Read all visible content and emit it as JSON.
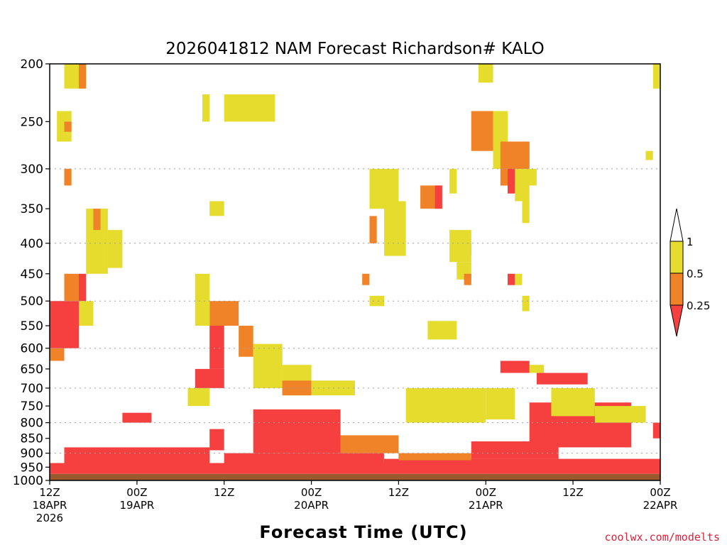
{
  "chart_data": {
    "type": "heatmap",
    "title": "2026041812 NAM Forecast Richardson# KALO",
    "xlabel": "Forecast Time (UTC)",
    "ylabel": "",
    "credit": "coolwx.com/modelts",
    "y_axis": {
      "range": [
        1000,
        200
      ],
      "ticks": [
        "200",
        "250",
        "300",
        "350",
        "400",
        "450",
        "500",
        "550",
        "600",
        "650",
        "700",
        "750",
        "800",
        "850",
        "900",
        "950",
        "1000"
      ],
      "gridlines": [
        300,
        400,
        500,
        600,
        700,
        800,
        900,
        1000
      ]
    },
    "x_axis": {
      "range_hours": [
        0,
        84
      ],
      "ticks": [
        {
          "hour": 0,
          "lines": [
            "12Z",
            "18APR",
            "2026"
          ]
        },
        {
          "hour": 12,
          "lines": [
            "00Z",
            "19APR"
          ]
        },
        {
          "hour": 24,
          "lines": [
            "12Z"
          ]
        },
        {
          "hour": 36,
          "lines": [
            "00Z",
            "20APR"
          ]
        },
        {
          "hour": 48,
          "lines": [
            "12Z"
          ]
        },
        {
          "hour": 60,
          "lines": [
            "00Z",
            "21APR"
          ]
        },
        {
          "hour": 72,
          "lines": [
            "12Z"
          ]
        },
        {
          "hour": 84,
          "lines": [
            "00Z",
            "22APR"
          ]
        }
      ]
    },
    "legend": {
      "placement": "right",
      "labels": [
        "1",
        "0.5",
        "0.25"
      ],
      "bins": [
        {
          "range": "> 1",
          "color": "#ffffff"
        },
        {
          "range": "0.5 - 1",
          "color": "#e5dc2e"
        },
        {
          "range": "0.25 - 0.5",
          "color": "#f08228"
        },
        {
          "range": "< 0.25",
          "color": "#f64040"
        }
      ]
    },
    "colors": {
      "low": "#f64040",
      "mid": "#f08228",
      "high": "#e5dc2e",
      "ground": "#9a5a2e"
    },
    "ground_level_hpa": 975,
    "regions": [
      {
        "level": "low",
        "h": [
          0,
          84
        ],
        "p": [
          935,
          975
        ]
      },
      {
        "level": "low",
        "h": [
          2,
          22
        ],
        "p": [
          880,
          935
        ]
      },
      {
        "level": "low",
        "h": [
          10,
          14
        ],
        "p": [
          770,
          800
        ]
      },
      {
        "level": "low",
        "h": [
          22,
          24
        ],
        "p": [
          820,
          890
        ]
      },
      {
        "level": "low",
        "h": [
          24,
          46
        ],
        "p": [
          900,
          940
        ]
      },
      {
        "level": "low",
        "h": [
          28,
          40
        ],
        "p": [
          760,
          900
        ]
      },
      {
        "level": "mid",
        "h": [
          40,
          48
        ],
        "p": [
          840,
          900
        ]
      },
      {
        "level": "low",
        "h": [
          46,
          84
        ],
        "p": [
          920,
          950
        ]
      },
      {
        "level": "mid",
        "h": [
          48,
          58
        ],
        "p": [
          900,
          925
        ]
      },
      {
        "level": "low",
        "h": [
          58,
          70
        ],
        "p": [
          860,
          920
        ]
      },
      {
        "level": "low",
        "h": [
          66,
          80
        ],
        "p": [
          740,
          880
        ]
      },
      {
        "level": "low",
        "h": [
          62,
          66
        ],
        "p": [
          630,
          660
        ]
      },
      {
        "level": "low",
        "h": [
          67,
          74
        ],
        "p": [
          660,
          690
        ]
      },
      {
        "level": "low",
        "h": [
          83,
          84
        ],
        "p": [
          800,
          850
        ]
      },
      {
        "level": "low",
        "h": [
          0,
          4
        ],
        "p": [
          500,
          600
        ]
      },
      {
        "level": "mid",
        "h": [
          0,
          2
        ],
        "p": [
          600,
          630
        ]
      },
      {
        "level": "mid",
        "h": [
          2,
          4
        ],
        "p": [
          450,
          500
        ]
      },
      {
        "level": "low",
        "h": [
          4,
          5
        ],
        "p": [
          450,
          500
        ]
      },
      {
        "level": "high",
        "h": [
          5,
          8
        ],
        "p": [
          350,
          450
        ]
      },
      {
        "level": "high",
        "h": [
          8,
          10
        ],
        "p": [
          380,
          440
        ]
      },
      {
        "level": "high",
        "h": [
          4,
          6
        ],
        "p": [
          500,
          550
        ]
      },
      {
        "level": "mid",
        "h": [
          6,
          7
        ],
        "p": [
          350,
          380
        ]
      },
      {
        "level": "high",
        "h": [
          2,
          5
        ],
        "p": [
          200,
          220
        ]
      },
      {
        "level": "mid",
        "h": [
          4,
          5
        ],
        "p": [
          200,
          220
        ]
      },
      {
        "level": "high",
        "h": [
          1,
          3
        ],
        "p": [
          240,
          270
        ]
      },
      {
        "level": "mid",
        "h": [
          2,
          3
        ],
        "p": [
          250,
          260
        ]
      },
      {
        "level": "mid",
        "h": [
          2,
          3
        ],
        "p": [
          300,
          320
        ]
      },
      {
        "level": "high",
        "h": [
          21,
          22
        ],
        "p": [
          225,
          250
        ]
      },
      {
        "level": "high",
        "h": [
          24,
          31
        ],
        "p": [
          225,
          250
        ]
      },
      {
        "level": "high",
        "h": [
          22,
          24
        ],
        "p": [
          340,
          360
        ]
      },
      {
        "level": "low",
        "h": [
          22,
          24
        ],
        "p": [
          550,
          650
        ]
      },
      {
        "level": "mid",
        "h": [
          22,
          26
        ],
        "p": [
          500,
          550
        ]
      },
      {
        "level": "low",
        "h": [
          20,
          24
        ],
        "p": [
          650,
          700
        ]
      },
      {
        "level": "high",
        "h": [
          20,
          22
        ],
        "p": [
          450,
          550
        ]
      },
      {
        "level": "mid",
        "h": [
          26,
          28
        ],
        "p": [
          550,
          620
        ]
      },
      {
        "level": "high",
        "h": [
          28,
          32
        ],
        "p": [
          590,
          700
        ]
      },
      {
        "level": "high",
        "h": [
          32,
          36
        ],
        "p": [
          640,
          720
        ]
      },
      {
        "level": "mid",
        "h": [
          32,
          36
        ],
        "p": [
          680,
          720
        ]
      },
      {
        "level": "high",
        "h": [
          36,
          42
        ],
        "p": [
          680,
          720
        ]
      },
      {
        "level": "high",
        "h": [
          19,
          22
        ],
        "p": [
          700,
          750
        ]
      },
      {
        "level": "high",
        "h": [
          44,
          48
        ],
        "p": [
          300,
          350
        ]
      },
      {
        "level": "high",
        "h": [
          46,
          49
        ],
        "p": [
          340,
          420
        ]
      },
      {
        "level": "mid",
        "h": [
          44,
          45
        ],
        "p": [
          360,
          400
        ]
      },
      {
        "level": "mid",
        "h": [
          43,
          44
        ],
        "p": [
          450,
          470
        ]
      },
      {
        "level": "high",
        "h": [
          44,
          46
        ],
        "p": [
          490,
          510
        ]
      },
      {
        "level": "high",
        "h": [
          50,
          56
        ],
        "p": [
          740,
          790
        ]
      },
      {
        "level": "high",
        "h": [
          52,
          56
        ],
        "p": [
          540,
          580
        ]
      },
      {
        "level": "mid",
        "h": [
          51,
          54
        ],
        "p": [
          320,
          350
        ]
      },
      {
        "level": "low",
        "h": [
          53,
          54
        ],
        "p": [
          320,
          350
        ]
      },
      {
        "level": "high",
        "h": [
          55,
          56
        ],
        "p": [
          300,
          330
        ]
      },
      {
        "level": "mid",
        "h": [
          57,
          58
        ],
        "p": [
          400,
          420
        ]
      },
      {
        "level": "high",
        "h": [
          55,
          58
        ],
        "p": [
          380,
          430
        ]
      },
      {
        "level": "high",
        "h": [
          56,
          58
        ],
        "p": [
          430,
          460
        ]
      },
      {
        "level": "mid",
        "h": [
          57,
          58
        ],
        "p": [
          450,
          470
        ]
      },
      {
        "level": "high",
        "h": [
          59,
          61
        ],
        "p": [
          200,
          215
        ]
      },
      {
        "level": "mid",
        "h": [
          58,
          61
        ],
        "p": [
          240,
          280
        ]
      },
      {
        "level": "high",
        "h": [
          61,
          63
        ],
        "p": [
          240,
          300
        ]
      },
      {
        "level": "mid",
        "h": [
          62,
          66
        ],
        "p": [
          270,
          320
        ]
      },
      {
        "level": "low",
        "h": [
          63,
          64
        ],
        "p": [
          300,
          330
        ]
      },
      {
        "level": "high",
        "h": [
          64,
          66
        ],
        "p": [
          300,
          340
        ]
      },
      {
        "level": "high",
        "h": [
          65,
          66
        ],
        "p": [
          340,
          370
        ]
      },
      {
        "level": "high",
        "h": [
          66,
          67
        ],
        "p": [
          300,
          320
        ]
      },
      {
        "level": "low",
        "h": [
          63,
          64
        ],
        "p": [
          450,
          470
        ]
      },
      {
        "level": "high",
        "h": [
          64,
          65
        ],
        "p": [
          450,
          470
        ]
      },
      {
        "level": "high",
        "h": [
          65,
          66
        ],
        "p": [
          490,
          520
        ]
      },
      {
        "level": "high",
        "h": [
          66,
          68
        ],
        "p": [
          640,
          660
        ]
      },
      {
        "level": "high",
        "h": [
          69,
          75
        ],
        "p": [
          700,
          780
        ]
      },
      {
        "level": "high",
        "h": [
          75,
          82
        ],
        "p": [
          750,
          800
        ]
      },
      {
        "level": "high",
        "h": [
          83,
          84
        ],
        "p": [
          200,
          220
        ]
      },
      {
        "level": "high",
        "h": [
          82,
          83
        ],
        "p": [
          280,
          290
        ]
      },
      {
        "level": "high",
        "h": [
          49,
          60
        ],
        "p": [
          700,
          800
        ]
      },
      {
        "level": "high",
        "h": [
          60,
          64
        ],
        "p": [
          700,
          790
        ]
      }
    ]
  }
}
